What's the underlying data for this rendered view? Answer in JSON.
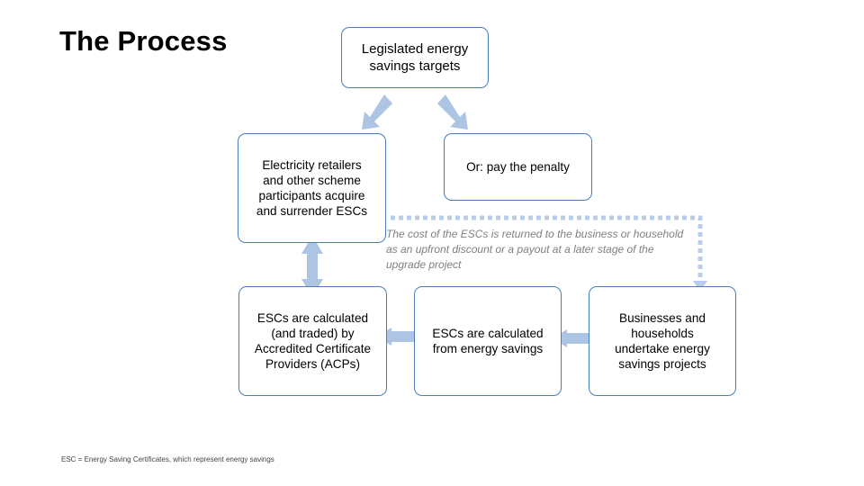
{
  "title": "The Process",
  "boxes": {
    "targets": "Legislated energy\nsavings  targets",
    "retailers": "Electricity retailers\nand other scheme\nparticipants acquire\nand surrender ESCs",
    "penalty": "Or: pay the penalty",
    "acp": "ESCs are calculated\n(and traded) by\nAccredited Certificate\nProviders (ACPs)",
    "calc": "ESCs are calculated\nfrom energy savings",
    "business": "Businesses and\nhouseholds\nundertake energy\nsavings projects"
  },
  "note": "The cost of the ESCs is returned to the business or household\nas an upfront discount or a payout at a later stage of the\nupgrade project",
  "footnote": "ESC = Energy Saving Certificates, which represent energy savings",
  "colors": {
    "box_border": "#4a7ebb",
    "arrow_fill": "#aec4e3",
    "dotted_line": "#b8cde8",
    "note_text": "#7f7f7f"
  }
}
